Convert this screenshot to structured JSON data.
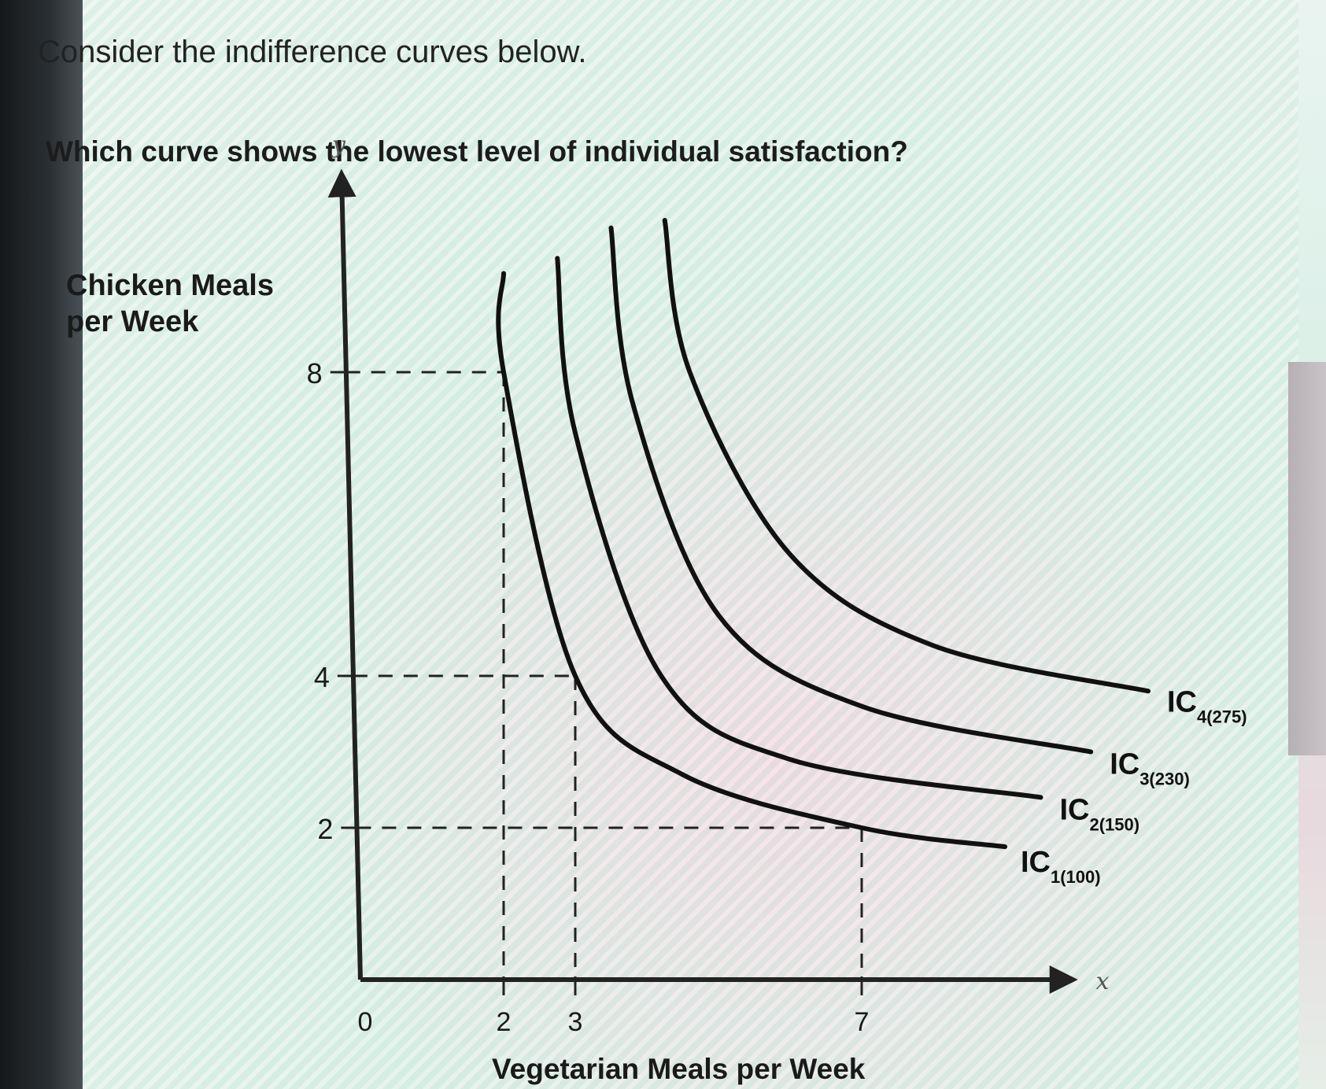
{
  "prompt": "Consider the indifference curves below.",
  "question": "Which curve shows the lowest level of individual satisfaction?",
  "chart_data": {
    "type": "line",
    "title": "",
    "ylabel": "Chicken Meals per Week",
    "xlabel": "Vegetarian Meals per Week",
    "x_axis_symbol": "x",
    "y_axis_symbol": "y",
    "origin_label": "0",
    "x_ticks": [
      2,
      3,
      7
    ],
    "y_ticks": [
      2,
      4,
      8
    ],
    "xlim": [
      0,
      9.5
    ],
    "ylim": [
      0,
      10.5
    ],
    "reference_points": [
      {
        "x": 2,
        "y": 8
      },
      {
        "x": 3,
        "y": 4
      },
      {
        "x": 7,
        "y": 2
      }
    ],
    "series": [
      {
        "name": "IC",
        "subscript": "1(100)",
        "points": [
          [
            2,
            9.3
          ],
          [
            2,
            8
          ],
          [
            3,
            4
          ],
          [
            4.5,
            2.7
          ],
          [
            7,
            2
          ],
          [
            9,
            1.75
          ]
        ]
      },
      {
        "name": "IC",
        "subscript": "2(150)",
        "points": [
          [
            2.75,
            9.5
          ],
          [
            3,
            7.2
          ],
          [
            4.2,
            4.0
          ],
          [
            6,
            2.9
          ],
          [
            9.5,
            2.4
          ]
        ]
      },
      {
        "name": "IC",
        "subscript": "3(230)",
        "points": [
          [
            3.5,
            9.9
          ],
          [
            3.8,
            7.6
          ],
          [
            5,
            4.8
          ],
          [
            7,
            3.6
          ],
          [
            10.2,
            3.0
          ]
        ]
      },
      {
        "name": "IC",
        "subscript": "4(275)",
        "points": [
          [
            4.25,
            10.0
          ],
          [
            4.6,
            8.0
          ],
          [
            6,
            5.6
          ],
          [
            8,
            4.4
          ],
          [
            11,
            3.8
          ]
        ]
      }
    ]
  }
}
